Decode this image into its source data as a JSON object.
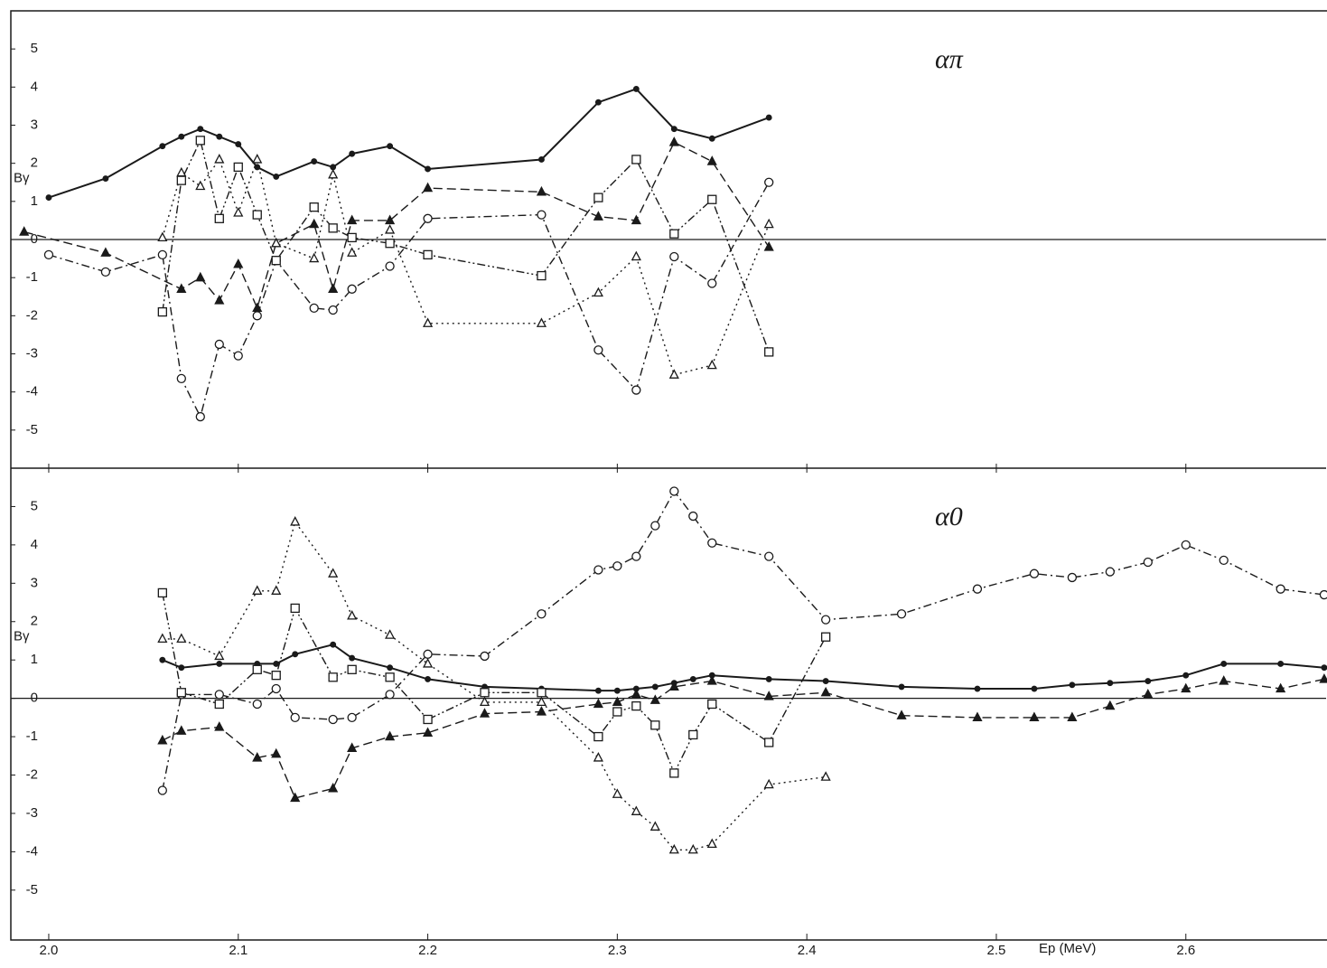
{
  "chart_data": [
    {
      "type": "line",
      "annotation": "απ",
      "ylabel": "Bγ",
      "xlim": [
        1.98,
        2.674
      ],
      "ylim": [
        -6,
        6
      ],
      "yticks": [
        -5,
        -4,
        -3,
        -2,
        -1,
        0,
        1,
        2,
        3,
        4,
        5
      ],
      "series": [
        {
          "color": "#1a1a1a",
          "marker": "dot",
          "line": "solid",
          "x": [
            2.0,
            2.03,
            2.06,
            2.07,
            2.08,
            2.09,
            2.1,
            2.11,
            2.12,
            2.14,
            2.15,
            2.16,
            2.18,
            2.2,
            2.26,
            2.29,
            2.31,
            2.33,
            2.35,
            2.38
          ],
          "values": [
            1.1,
            1.6,
            2.45,
            2.7,
            2.9,
            2.7,
            2.5,
            1.9,
            1.65,
            2.05,
            1.9,
            2.25,
            2.45,
            1.85,
            2.1,
            3.6,
            3.95,
            2.9,
            2.65,
            3.2
          ]
        },
        {
          "color": "#1a1a1a",
          "marker": "triangle-filled",
          "line": "dashed",
          "x": [
            1.987,
            2.03,
            2.07,
            2.08,
            2.09,
            2.1,
            2.11,
            2.12,
            2.14,
            2.15,
            2.16,
            2.18,
            2.2,
            2.26,
            2.29,
            2.31,
            2.33,
            2.35,
            2.38
          ],
          "values": [
            0.2,
            -0.35,
            -1.3,
            -1.0,
            -1.6,
            -0.65,
            -1.8,
            -0.1,
            0.4,
            -1.3,
            0.5,
            0.5,
            1.35,
            1.25,
            0.6,
            0.5,
            2.55,
            2.05,
            -0.2
          ]
        },
        {
          "color": "#1a1a1a",
          "marker": "triangle",
          "line": "dotted",
          "x": [
            2.06,
            2.07,
            2.08,
            2.09,
            2.1,
            2.11,
            2.12,
            2.14,
            2.15,
            2.16,
            2.18,
            2.2,
            2.26,
            2.29,
            2.31,
            2.33,
            2.35,
            2.38
          ],
          "values": [
            0.05,
            1.75,
            1.4,
            2.1,
            0.7,
            2.1,
            -0.1,
            -0.5,
            1.7,
            -0.35,
            0.25,
            -2.2,
            -2.2,
            -1.4,
            -0.45,
            -3.55,
            -3.3,
            0.4
          ]
        },
        {
          "color": "#1a1a1a",
          "marker": "circle",
          "line": "dashdot",
          "x": [
            2.0,
            2.03,
            2.06,
            2.07,
            2.08,
            2.09,
            2.1,
            2.11,
            2.12,
            2.14,
            2.15,
            2.16,
            2.18,
            2.2,
            2.26,
            2.29,
            2.31,
            2.33,
            2.35,
            2.38
          ],
          "values": [
            -0.4,
            -0.85,
            -0.4,
            -3.65,
            -4.65,
            -2.75,
            -3.05,
            -2.0,
            -0.55,
            -1.8,
            -1.85,
            -1.3,
            -0.7,
            0.55,
            0.65,
            -2.9,
            -3.95,
            -0.45,
            -1.15,
            1.5
          ]
        },
        {
          "color": "#1a1a1a",
          "marker": "square",
          "line": "dashdotdot",
          "x": [
            2.06,
            2.07,
            2.08,
            2.09,
            2.1,
            2.11,
            2.12,
            2.14,
            2.15,
            2.16,
            2.18,
            2.2,
            2.26,
            2.29,
            2.31,
            2.33,
            2.35,
            2.38
          ],
          "values": [
            -1.9,
            1.55,
            2.6,
            0.55,
            1.9,
            0.65,
            -0.55,
            0.85,
            0.3,
            0.05,
            -0.1,
            -0.4,
            -0.95,
            1.1,
            2.1,
            0.15,
            1.05,
            -2.95
          ]
        }
      ]
    },
    {
      "type": "line",
      "annotation": "α0",
      "ylabel": "Bγ",
      "xlabel": "Ep (MeV)",
      "xlim": [
        1.98,
        2.674
      ],
      "ylim": [
        -6.3,
        6
      ],
      "xticks": [
        {
          "value": 2,
          "label": "2.0"
        },
        2.1,
        2.2,
        2.3,
        2.4,
        2.5,
        2.6
      ],
      "yticks": [
        -5,
        -4,
        -3,
        -2,
        -1,
        0,
        1,
        2,
        3,
        4,
        5
      ],
      "series": [
        {
          "color": "#1a1a1a",
          "marker": "dot",
          "line": "solid",
          "x": [
            2.06,
            2.07,
            2.09,
            2.11,
            2.12,
            2.13,
            2.15,
            2.16,
            2.18,
            2.2,
            2.23,
            2.26,
            2.29,
            2.3,
            2.31,
            2.32,
            2.33,
            2.34,
            2.35,
            2.38,
            2.41,
            2.45,
            2.49,
            2.52,
            2.54,
            2.56,
            2.58,
            2.6,
            2.62,
            2.65,
            2.673
          ],
          "values": [
            1.0,
            0.8,
            0.9,
            0.9,
            0.9,
            1.15,
            1.4,
            1.05,
            0.8,
            0.5,
            0.3,
            0.25,
            0.2,
            0.2,
            0.25,
            0.3,
            0.4,
            0.5,
            0.6,
            0.5,
            0.45,
            0.3,
            0.25,
            0.25,
            0.35,
            0.4,
            0.45,
            0.6,
            0.9,
            0.9,
            0.8
          ]
        },
        {
          "color": "#1a1a1a",
          "marker": "triangle-filled",
          "line": "dashed",
          "x": [
            2.06,
            2.07,
            2.09,
            2.11,
            2.12,
            2.13,
            2.15,
            2.16,
            2.18,
            2.2,
            2.23,
            2.26,
            2.29,
            2.3,
            2.31,
            2.32,
            2.33,
            2.35,
            2.38,
            2.41,
            2.45,
            2.49,
            2.52,
            2.54,
            2.56,
            2.58,
            2.6,
            2.62,
            2.65,
            2.673
          ],
          "values": [
            -1.1,
            -0.85,
            -0.75,
            -1.55,
            -1.45,
            -2.6,
            -2.35,
            -1.3,
            -1.0,
            -0.9,
            -0.4,
            -0.35,
            -0.15,
            -0.1,
            0.1,
            -0.05,
            0.3,
            0.45,
            0.05,
            0.15,
            -0.45,
            -0.5,
            -0.5,
            -0.5,
            -0.2,
            0.1,
            0.25,
            0.45,
            0.25,
            0.5
          ]
        },
        {
          "color": "#1a1a1a",
          "marker": "triangle",
          "line": "dotted",
          "x": [
            2.06,
            2.07,
            2.09,
            2.11,
            2.12,
            2.13,
            2.15,
            2.16,
            2.18,
            2.2,
            2.23,
            2.26,
            2.29,
            2.3,
            2.31,
            2.32,
            2.33,
            2.34,
            2.35,
            2.38,
            2.41
          ],
          "values": [
            1.55,
            1.55,
            1.1,
            2.8,
            2.8,
            4.6,
            3.25,
            2.15,
            1.65,
            0.9,
            -0.1,
            -0.1,
            -1.55,
            -2.5,
            -2.95,
            -3.35,
            -3.95,
            -3.95,
            -3.8,
            -2.25,
            -2.05
          ]
        },
        {
          "color": "#1a1a1a",
          "marker": "circle",
          "line": "dashdot",
          "x": [
            2.06,
            2.07,
            2.09,
            2.11,
            2.12,
            2.13,
            2.15,
            2.16,
            2.18,
            2.2,
            2.23,
            2.26,
            2.29,
            2.3,
            2.31,
            2.32,
            2.33,
            2.34,
            2.35,
            2.38,
            2.41,
            2.45,
            2.49,
            2.52,
            2.54,
            2.56,
            2.58,
            2.6,
            2.62,
            2.65,
            2.673
          ],
          "values": [
            -2.4,
            0.1,
            0.1,
            -0.15,
            0.25,
            -0.5,
            -0.55,
            -0.5,
            0.1,
            1.15,
            1.1,
            2.2,
            3.35,
            3.45,
            3.7,
            4.5,
            5.4,
            4.75,
            4.05,
            3.7,
            2.05,
            2.2,
            2.85,
            3.25,
            3.15,
            3.3,
            3.55,
            4.0,
            3.6,
            2.85,
            2.7
          ]
        },
        {
          "color": "#1a1a1a",
          "marker": "square",
          "line": "dashdotdot",
          "x": [
            2.06,
            2.07,
            2.09,
            2.11,
            2.12,
            2.13,
            2.15,
            2.16,
            2.18,
            2.2,
            2.23,
            2.26,
            2.29,
            2.3,
            2.31,
            2.32,
            2.33,
            2.34,
            2.35,
            2.38,
            2.41
          ],
          "values": [
            2.75,
            0.15,
            -0.15,
            0.75,
            0.6,
            2.35,
            0.55,
            0.75,
            0.55,
            -0.55,
            0.15,
            0.15,
            -1.0,
            -0.35,
            -0.2,
            -0.7,
            -1.95,
            -0.95,
            -0.15,
            -1.15,
            1.6
          ]
        }
      ]
    }
  ]
}
